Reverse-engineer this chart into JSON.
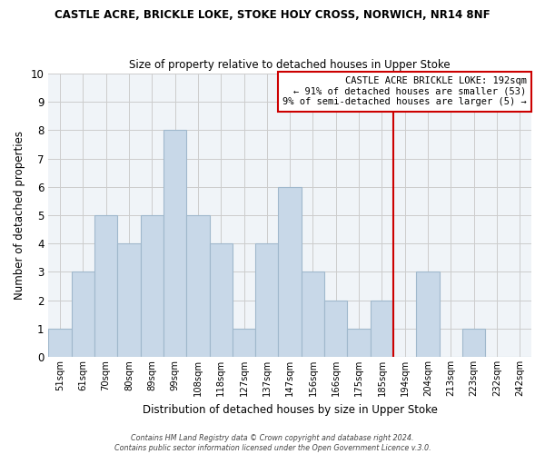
{
  "title": "CASTLE ACRE, BRICKLE LOKE, STOKE HOLY CROSS, NORWICH, NR14 8NF",
  "subtitle": "Size of property relative to detached houses in Upper Stoke",
  "xlabel": "Distribution of detached houses by size in Upper Stoke",
  "ylabel": "Number of detached properties",
  "footer_line1": "Contains HM Land Registry data © Crown copyright and database right 2024.",
  "footer_line2": "Contains public sector information licensed under the Open Government Licence v.3.0.",
  "bin_labels": [
    "51sqm",
    "61sqm",
    "70sqm",
    "80sqm",
    "89sqm",
    "99sqm",
    "108sqm",
    "118sqm",
    "127sqm",
    "137sqm",
    "147sqm",
    "156sqm",
    "166sqm",
    "175sqm",
    "185sqm",
    "194sqm",
    "204sqm",
    "213sqm",
    "223sqm",
    "232sqm",
    "242sqm"
  ],
  "bar_heights": [
    1,
    3,
    5,
    4,
    5,
    8,
    5,
    4,
    1,
    4,
    6,
    3,
    2,
    1,
    2,
    0,
    3,
    0,
    1,
    0,
    0
  ],
  "bar_color": "#c8d8e8",
  "bar_edge_color": "#a0b8cc",
  "grid_color": "#cccccc",
  "marker_bin_index": 15,
  "marker_line_color": "#cc0000",
  "ylim": [
    0,
    10
  ],
  "yticks": [
    0,
    1,
    2,
    3,
    4,
    5,
    6,
    7,
    8,
    9,
    10
  ],
  "annotation_title": "CASTLE ACRE BRICKLE LOKE: 192sqm",
  "annotation_line1": "← 91% of detached houses are smaller (53)",
  "annotation_line2": "9% of semi-detached houses are larger (5) →",
  "annotation_box_color": "#ffffff",
  "annotation_box_edge_color": "#cc0000",
  "background_color": "#f0f4f8"
}
